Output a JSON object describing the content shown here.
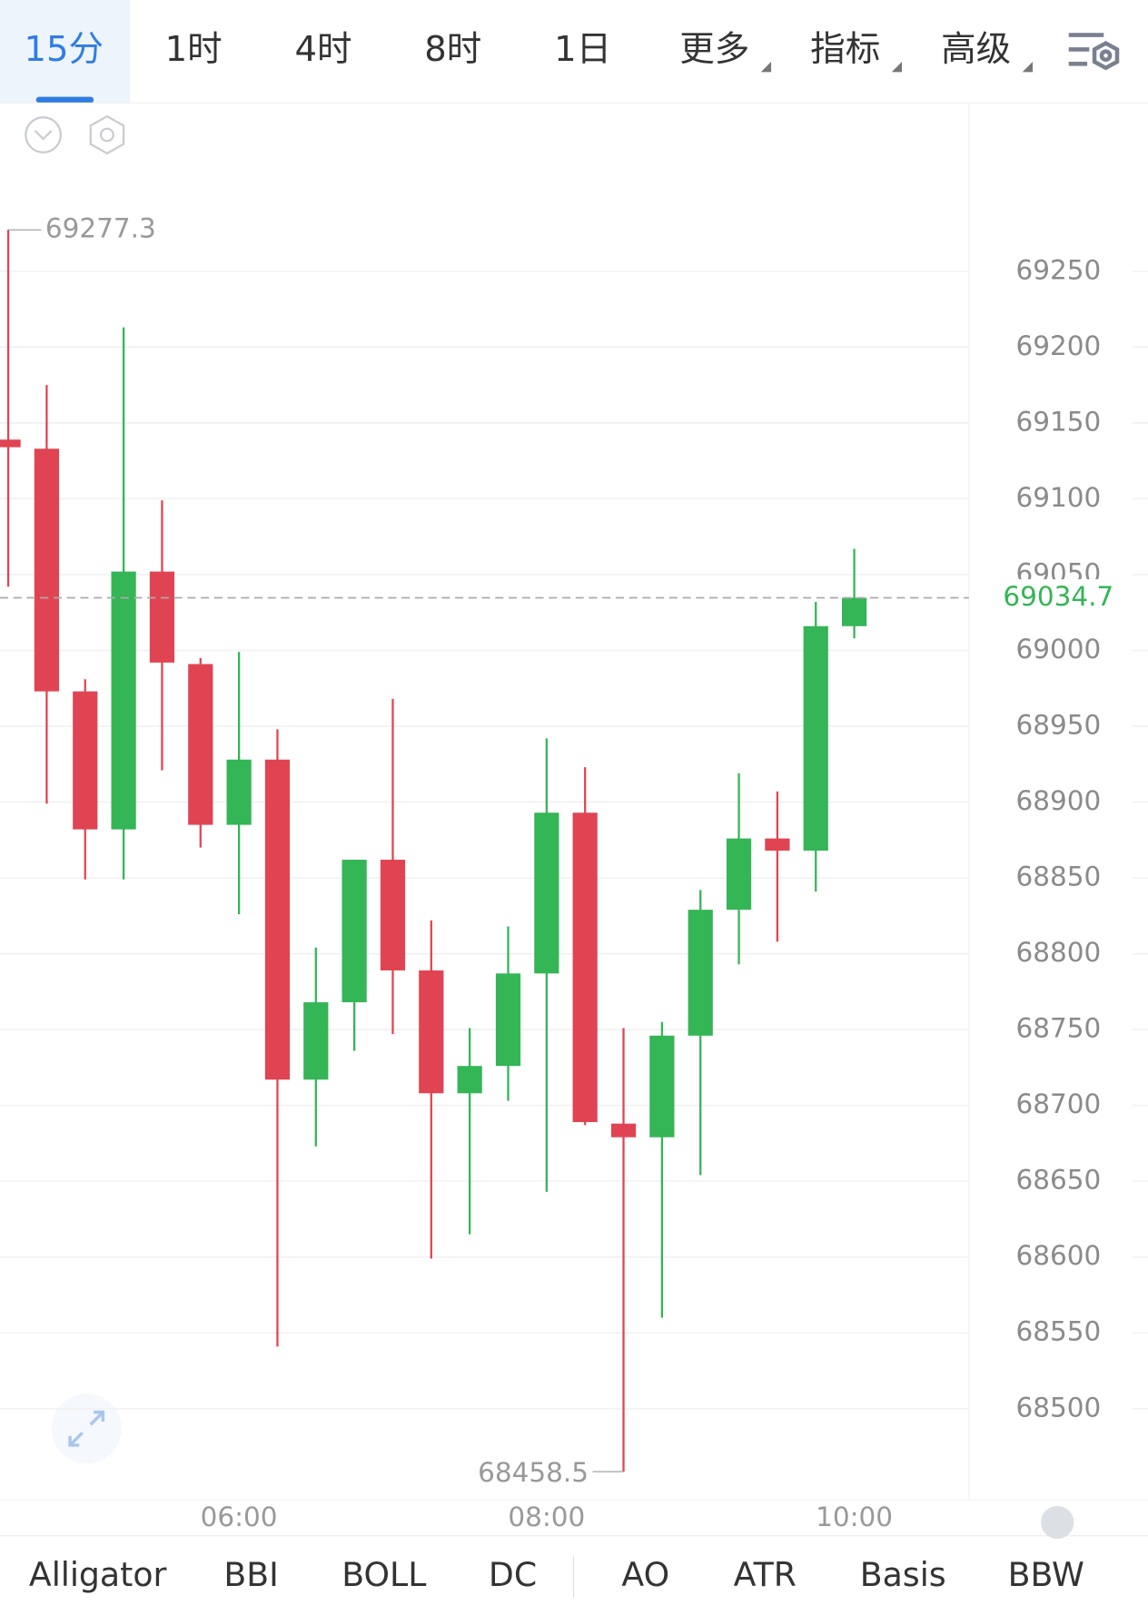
{
  "tabs": [
    "15分",
    "1时",
    "4时",
    "8时",
    "1日",
    "更多",
    "指标",
    "高级"
  ],
  "indicators": [
    "Alligator",
    "BBI",
    "BOLL",
    "DC",
    "AO",
    "ATR",
    "Basis",
    "BBW"
  ],
  "chart_data": {
    "type": "candlestick",
    "categories": [
      null,
      null,
      null,
      null,
      null,
      null,
      "06:00",
      null,
      null,
      null,
      null,
      null,
      null,
      null,
      "08:00",
      null,
      null,
      null,
      null,
      null,
      null,
      null,
      "10:00"
    ],
    "open": [
      69139,
      69133,
      68973,
      68882,
      69052,
      68991,
      68885,
      68928,
      68717,
      68768,
      68862,
      68789,
      68708,
      68726,
      68787,
      68893,
      68688,
      68679,
      68746,
      68829,
      68876,
      68868,
      69016
    ],
    "high": [
      69277.3,
      69175,
      68981,
      69213,
      69099,
      68995,
      68999,
      68948,
      68804,
      68862,
      68968,
      68822,
      68751,
      68818,
      68942,
      68923,
      68751,
      68755,
      68842,
      68919,
      68907,
      69032,
      69067
    ],
    "low": [
      69042,
      68899,
      68849,
      68849,
      68921,
      68870,
      68826,
      68541,
      68673,
      68736,
      68747,
      68599,
      68615,
      68703,
      68643,
      68687,
      68458.5,
      68560,
      68654,
      68793,
      68808,
      68841,
      69008
    ],
    "close": [
      69134,
      68973,
      68882,
      69052,
      68992,
      68885,
      68928,
      68717,
      68768,
      68862,
      68789,
      68708,
      68726,
      68787,
      68893,
      68689,
      68679,
      68746,
      68829,
      68876,
      68868,
      69016,
      69034.7
    ],
    "up_color": "#34b556",
    "down_color": "#e04452",
    "ylim": [
      68440,
      69361
    ],
    "yticks": [
      68500,
      68550,
      68600,
      68650,
      68700,
      68750,
      68800,
      68850,
      68900,
      68950,
      69000,
      69050,
      69100,
      69150,
      69200,
      69250
    ],
    "grid": true
  }
}
